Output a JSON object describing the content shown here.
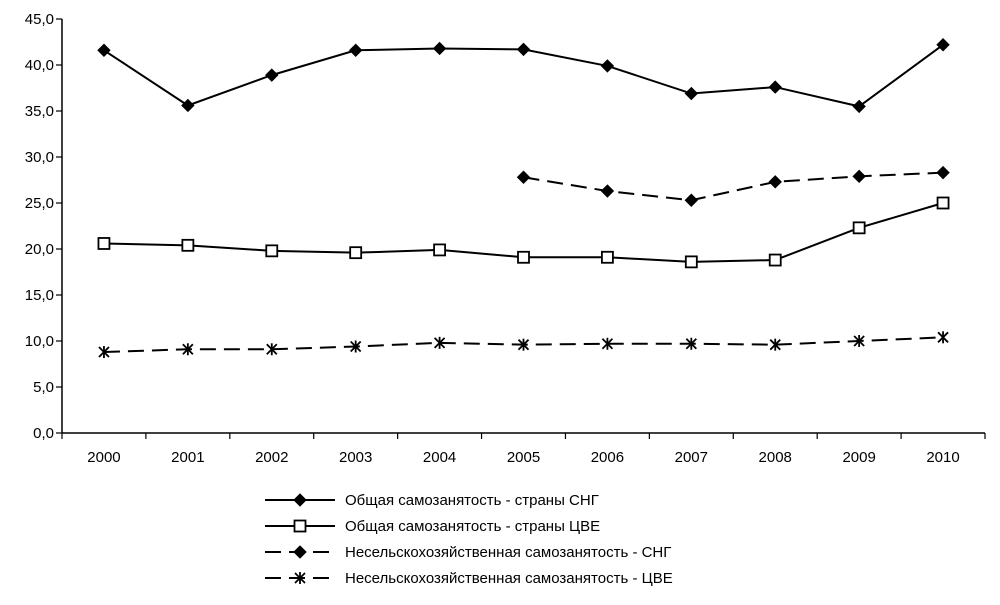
{
  "chart_data": {
    "type": "line",
    "categories": [
      "2000",
      "2001",
      "2002",
      "2003",
      "2004",
      "2005",
      "2006",
      "2007",
      "2008",
      "2009",
      "2010"
    ],
    "y_ticks": [
      "0,0",
      "5,0",
      "10,0",
      "15,0",
      "20,0",
      "25,0",
      "30,0",
      "35,0",
      "40,0",
      "45,0"
    ],
    "ylim": [
      0,
      45
    ],
    "grid": false,
    "legend_position": "bottom",
    "series": [
      {
        "name": "Общая самозанятость - страны СНГ",
        "line": "solid",
        "marker": "filled-diamond",
        "values": [
          41.6,
          35.6,
          38.9,
          41.6,
          41.8,
          41.7,
          39.9,
          36.9,
          37.6,
          35.5,
          42.2
        ]
      },
      {
        "name": "Общая самозанятость - страны ЦВЕ",
        "line": "solid",
        "marker": "open-square",
        "values": [
          20.6,
          20.4,
          19.8,
          19.6,
          19.9,
          19.1,
          19.1,
          18.6,
          18.8,
          22.3,
          25.0
        ]
      },
      {
        "name": "Несельскохозяйственная самозанятость -  СНГ",
        "line": "dashed",
        "marker": "filled-diamond",
        "values": [
          null,
          null,
          null,
          null,
          null,
          27.8,
          26.3,
          25.3,
          27.3,
          27.9,
          28.3
        ]
      },
      {
        "name": "Несельскохозяйственная самозанятость - ЦВЕ",
        "line": "dashed",
        "marker": "asterisk",
        "values": [
          8.8,
          9.1,
          9.1,
          9.4,
          9.8,
          9.6,
          9.7,
          9.7,
          9.6,
          10.0,
          10.4
        ]
      }
    ]
  }
}
